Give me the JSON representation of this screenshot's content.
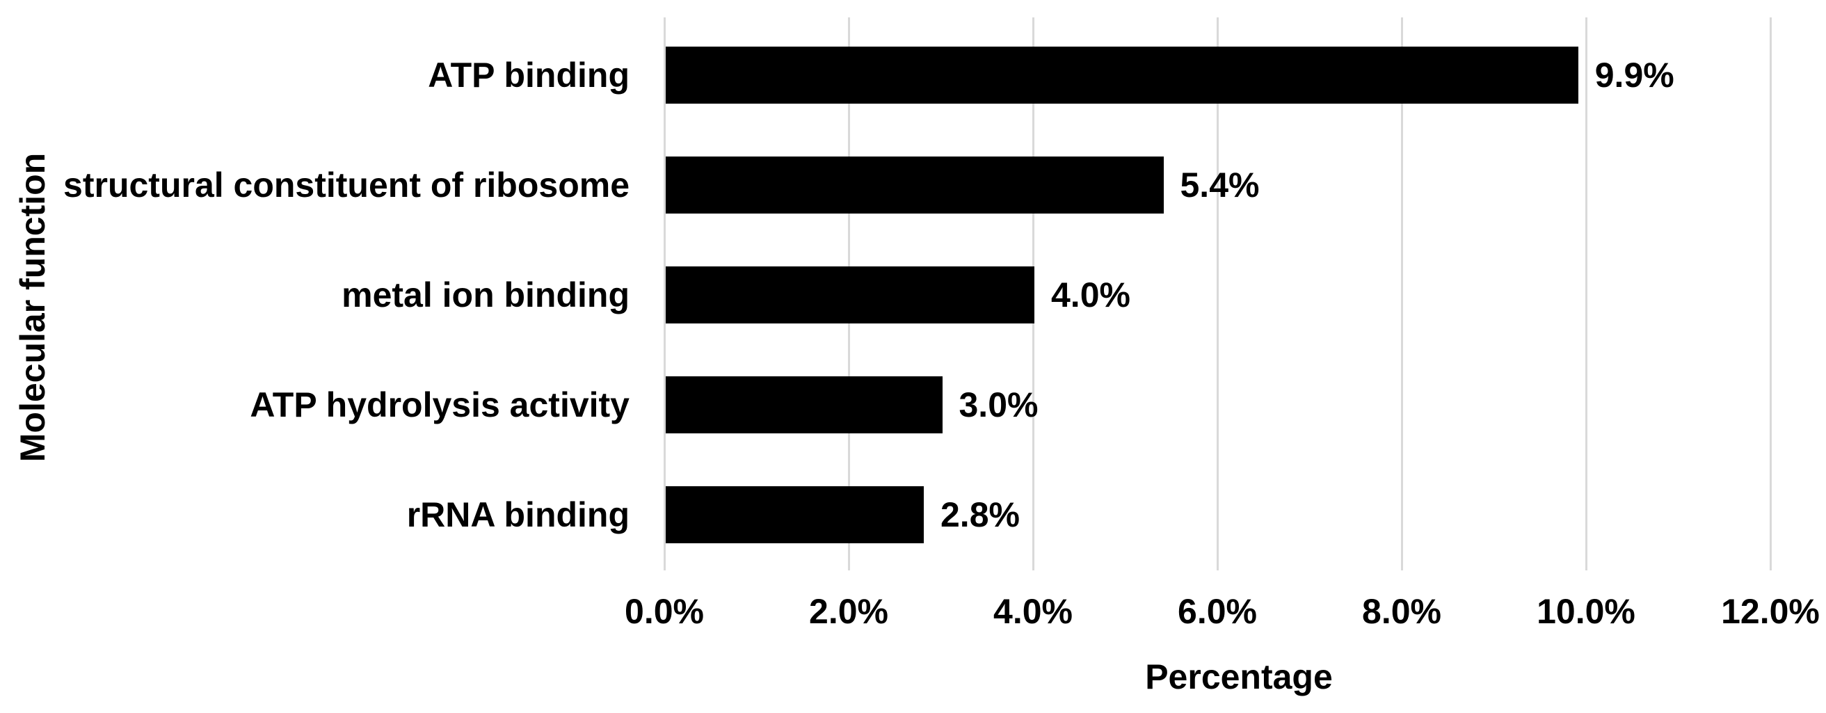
{
  "chart_data": {
    "type": "bar",
    "orientation": "horizontal",
    "title": "",
    "xlabel": "Percentage",
    "ylabel": "Molecular function",
    "categories": [
      "ATP binding",
      "structural constituent of ribosome",
      "metal ion binding",
      "ATP hydrolysis activity",
      "rRNA binding"
    ],
    "values": [
      9.9,
      5.4,
      4.0,
      3.0,
      2.8
    ],
    "value_labels": [
      "9.9%",
      "5.4%",
      "4.0%",
      "3.0%",
      "2.8%"
    ],
    "xlim": [
      0,
      12
    ],
    "x_tick_values": [
      0,
      2,
      4,
      6,
      8,
      10,
      12
    ],
    "x_tick_labels": [
      "0.0%",
      "2.0%",
      "4.0%",
      "6.0%",
      "8.0%",
      "10.0%",
      "12.0%"
    ],
    "grid": "vertical-gridlines-on",
    "legend": "none",
    "bar_color": "#000000",
    "gridline_color": "#d9d9d9",
    "text_color": "#000000",
    "background_color": "#ffffff"
  }
}
